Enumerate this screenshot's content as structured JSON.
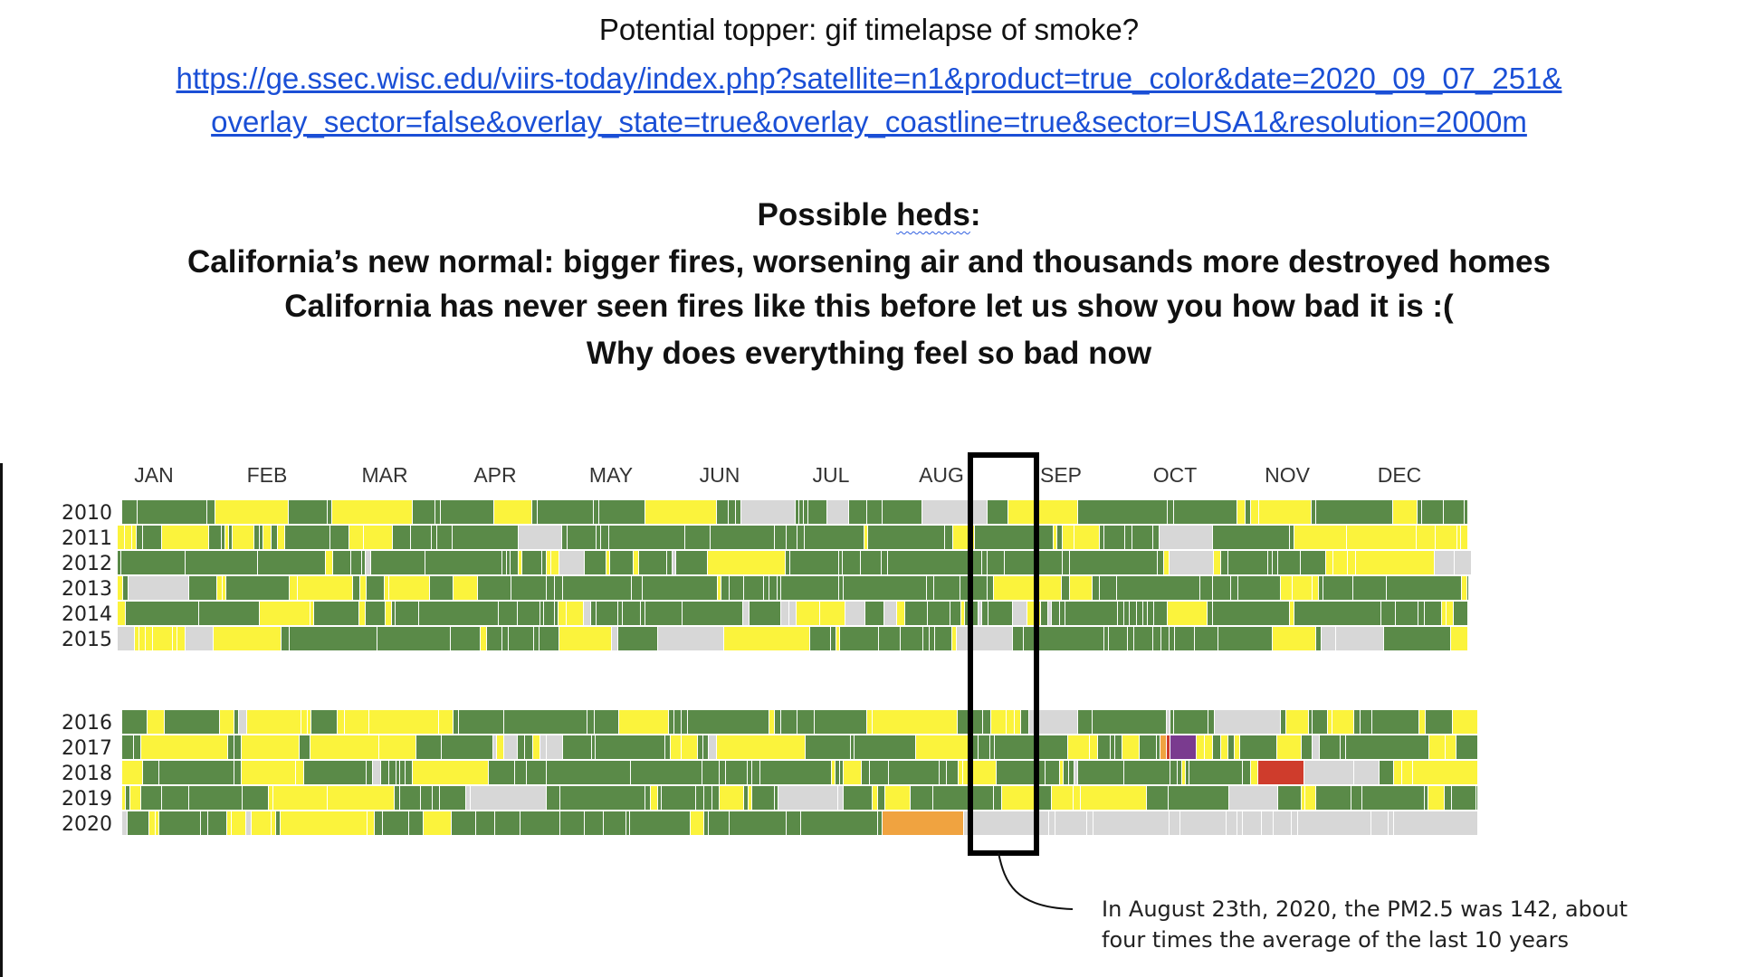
{
  "doc": {
    "topper": "Potential topper: gif timelapse of smoke?",
    "link_line1": "https://ge.ssec.wisc.edu/viirs-today/index.php?satellite=n1&product=true_color&date=2020_09_07_251&",
    "link_line2": "overlay_sector=false&overlay_state=true&overlay_coastline=true&sector=USA1&resolution=2000m",
    "heds_title_pre": "Possible ",
    "heds_title_word": "heds",
    "heds_title_post": ":",
    "heds": [
      "California’s new normal: bigger fires, worsening air and thousands more destroyed homes",
      "California has never seen fires like this before let us show you how bad it is :(",
      "Why does everything feel so bad now"
    ],
    "callout": "In August 23th, 2020, the PM2.5 was 142, about four times the average of the last 10 years"
  },
  "chart_data": {
    "type": "heatmap",
    "x_categories": [
      "JAN",
      "FEB",
      "MAR",
      "APR",
      "MAY",
      "JUN",
      "JUL",
      "AUG",
      "SEP",
      "OCT",
      "NOV",
      "DEC"
    ],
    "y_categories": [
      "2010",
      "2011",
      "2012",
      "2013",
      "2014",
      "2015",
      "2016",
      "2017",
      "2018",
      "2019",
      "2020"
    ],
    "colors": {
      "good": "#5a8a48",
      "moderate": "#fbf33c",
      "unhealthy_sensitive": "#f0a340",
      "unhealthy": "#cf3c2c",
      "very_unhealthy": "#7a3b8f",
      "no_data": "#d7d7d7"
    },
    "highlight_months": [
      "AUG"
    ],
    "annotation": {
      "date": "2020-08-23",
      "pm25": 142
    }
  }
}
